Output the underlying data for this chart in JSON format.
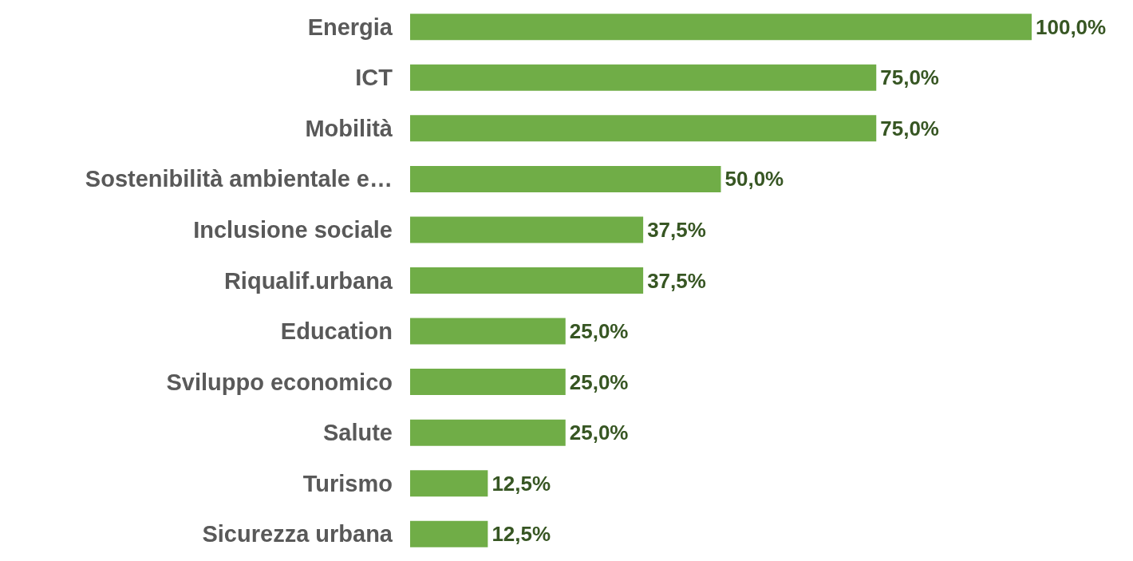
{
  "chart_data": {
    "type": "bar",
    "orientation": "horizontal",
    "categories": [
      "Energia",
      "ICT",
      "Mobilità",
      "Sostenibilità ambientale e…",
      "Inclusione sociale",
      "Riqualif.urbana",
      "Education",
      "Sviluppo economico",
      "Salute",
      "Turismo",
      "Sicurezza urbana"
    ],
    "values": [
      100,
      75,
      75,
      50,
      37.5,
      37.5,
      25,
      25,
      25,
      12.5,
      12.5
    ],
    "value_labels": [
      "100,0%",
      "75,0%",
      "75,0%",
      "50,0%",
      "37,5%",
      "37,5%",
      "25,0%",
      "25,0%",
      "25,0%",
      "12,5%",
      "12,5%"
    ],
    "color": "#70ad47"
  }
}
